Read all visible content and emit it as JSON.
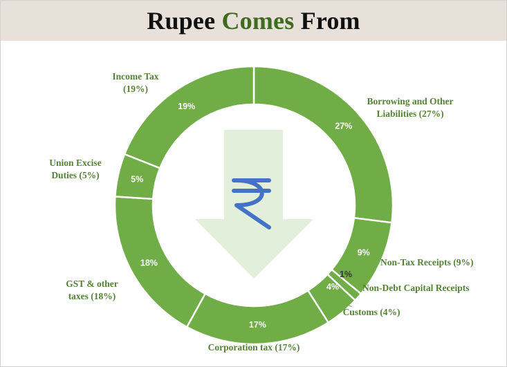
{
  "title": {
    "part1": "Rupee",
    "part2": "Comes",
    "part3": "From"
  },
  "colors": {
    "slice": "#70ad47",
    "label": "#548235",
    "header_bg": "#e7e1d9",
    "arrow": "#e2efda",
    "rupee": "#4472c4"
  },
  "center_icon": "rupee-down-arrow-icon",
  "chart_data": {
    "type": "pie",
    "donut": true,
    "title": "Rupee Comes From",
    "legend": "none",
    "slices": [
      {
        "label": "Borrowing and Other Liabilities",
        "value": 27,
        "label_lines": [
          "Borrowing and Other",
          "Liabilities (27%)"
        ],
        "inner_label": "27%"
      },
      {
        "label": "Non-Tax Receipts",
        "value": 9,
        "label_lines": [
          "Non-Tax Receipts (9%)"
        ],
        "inner_label": "9%"
      },
      {
        "label": "Non-Debt Capital Receipts",
        "value": 1,
        "label_lines": [
          "Non-Debt Capital Receipts"
        ],
        "inner_label": "1%"
      },
      {
        "label": "Customs",
        "value": 4,
        "label_lines": [
          "Customs (4%)"
        ],
        "inner_label": "4%"
      },
      {
        "label": "Corporation tax",
        "value": 17,
        "label_lines": [
          "Corporation tax (17%)"
        ],
        "inner_label": "17%"
      },
      {
        "label": "GST & other taxes",
        "value": 18,
        "label_lines": [
          "GST & other",
          "taxes (18%)"
        ],
        "inner_label": "18%"
      },
      {
        "label": "Union Excise Duties",
        "value": 5,
        "label_lines": [
          "Union Excise",
          "Duties (5%)"
        ],
        "inner_label": "5%"
      },
      {
        "label": "Income Tax",
        "value": 19,
        "label_lines": [
          "Income Tax",
          "(19%)"
        ],
        "inner_label": "19%"
      }
    ]
  }
}
